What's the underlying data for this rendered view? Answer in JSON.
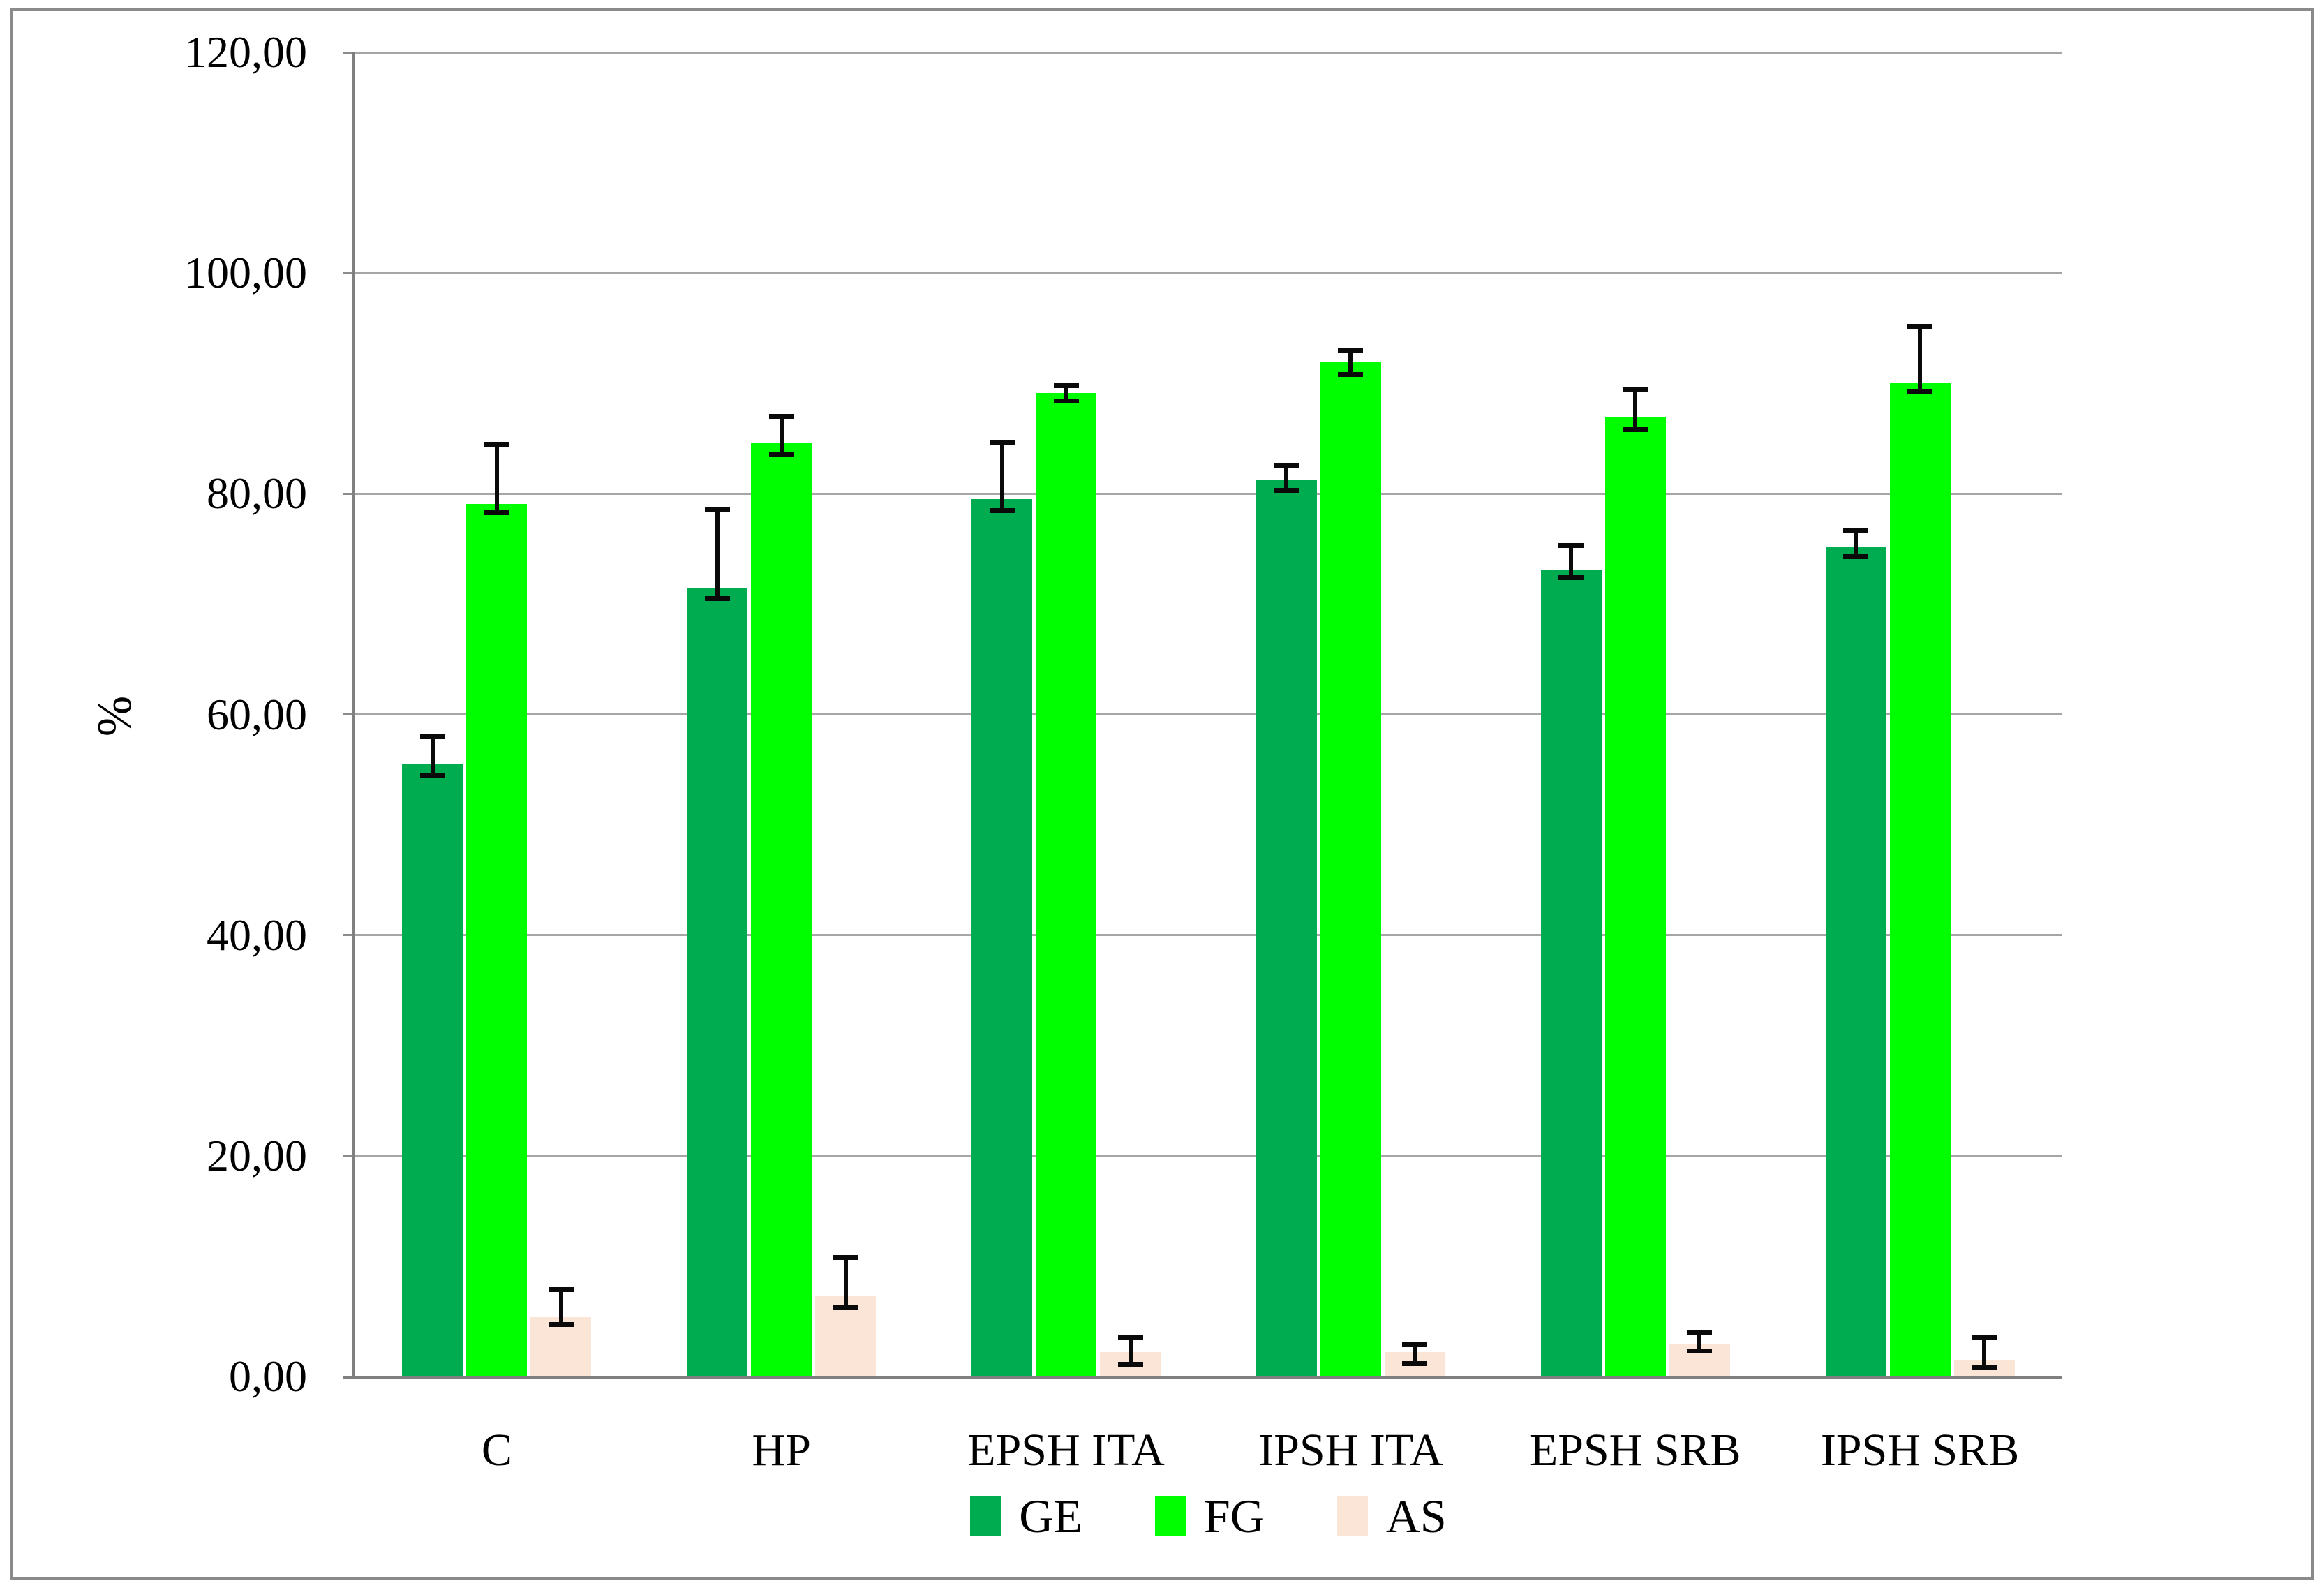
{
  "figure": {
    "background": "#ffffff",
    "frame_color": "#8a8a8a",
    "gridline_color": "#a6a6a6",
    "axis_color": "#808080",
    "error_bar_color": "#0a0a0a"
  },
  "chart_data": {
    "type": "bar",
    "title": "",
    "ylabel": "%",
    "xlabel": "",
    "ylim": [
      0,
      120
    ],
    "ytick_step": 20,
    "ytick_labels": [
      "0,00",
      "20,00",
      "40,00",
      "60,00",
      "80,00",
      "100,00",
      "120,00"
    ],
    "grid": "horizontal",
    "legend_position": "bottom",
    "categories": [
      "C",
      "HP",
      "EPSH ITA",
      "IPSH ITA",
      "EPSH SRB",
      "IPSH SRB"
    ],
    "series": [
      {
        "name": "GE",
        "color": "#00AC50",
        "values": [
          55.5,
          71.5,
          79.5,
          81.2,
          73.1,
          75.2
        ],
        "err_lo": [
          54.5,
          70.5,
          78.5,
          80.3,
          72.4,
          74.3
        ],
        "err_hi": [
          58.0,
          78.6,
          84.7,
          82.5,
          75.3,
          76.7
        ]
      },
      {
        "name": "FG",
        "color": "#00FE00",
        "values": [
          79.1,
          84.6,
          89.1,
          91.9,
          86.9,
          90.1
        ],
        "err_lo": [
          78.3,
          83.6,
          88.4,
          90.8,
          85.8,
          89.3
        ],
        "err_hi": [
          84.5,
          87.0,
          89.8,
          93.0,
          89.5,
          95.2
        ]
      },
      {
        "name": "AS",
        "color": "#FBE5D6",
        "values": [
          5.4,
          7.3,
          2.2,
          2.2,
          2.9,
          1.5
        ],
        "err_lo": [
          4.7,
          6.2,
          1.1,
          1.2,
          2.3,
          0.8
        ],
        "err_hi": [
          7.9,
          10.8,
          3.5,
          2.9,
          4.0,
          3.6
        ]
      }
    ]
  }
}
